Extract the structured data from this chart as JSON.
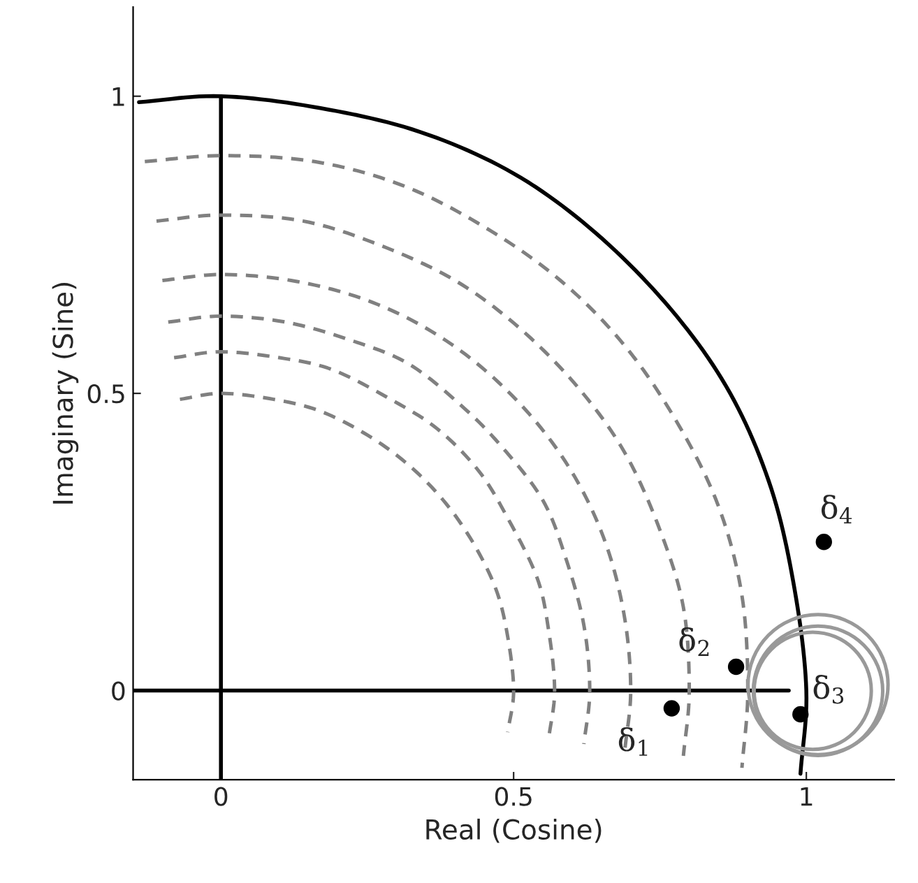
{
  "chart_data": {
    "type": "line",
    "xlabel": "Real (Cosine)",
    "ylabel": "Imaginary (Sine)",
    "xlim": [
      -0.15,
      1.15
    ],
    "ylim": [
      -0.15,
      1.15
    ],
    "xticks": [
      0,
      0.5,
      1
    ],
    "yticks": [
      0,
      0.5,
      1
    ],
    "grid": false,
    "legend": false,
    "series": [
      {
        "color": "#000000",
        "line_style": "solid",
        "x": [
          -0.15,
          0.97
        ],
        "values": [
          0,
          0
        ]
      },
      {
        "color": "#000000",
        "line_style": "solid",
        "x": [
          0,
          0
        ],
        "values": [
          -0.15,
          1
        ]
      },
      {
        "color": "#000000",
        "line_style": "solid",
        "x": [
          -0.14,
          0,
          0.17,
          0.34,
          0.5,
          0.64,
          0.77,
          0.87,
          0.94,
          0.98,
          1,
          0.99
        ],
        "values": [
          0.99,
          1,
          0.98,
          0.94,
          0.87,
          0.77,
          0.64,
          0.5,
          0.34,
          0.17,
          0,
          -0.14
        ]
      },
      {
        "color": "#808080",
        "line_style": "dashed",
        "x": [
          -0.13,
          0,
          0.16,
          0.31,
          0.45,
          0.58,
          0.69,
          0.78,
          0.85,
          0.89,
          0.9,
          0.89
        ],
        "values": [
          0.89,
          0.9,
          0.89,
          0.85,
          0.78,
          0.69,
          0.58,
          0.45,
          0.31,
          0.16,
          0,
          -0.13
        ]
      },
      {
        "color": "#808080",
        "line_style": "dashed",
        "x": [
          -0.11,
          0,
          0.14,
          0.27,
          0.4,
          0.51,
          0.61,
          0.69,
          0.75,
          0.79,
          0.8,
          0.79
        ],
        "values": [
          0.79,
          0.8,
          0.79,
          0.75,
          0.69,
          0.61,
          0.51,
          0.4,
          0.27,
          0.14,
          0,
          -0.11
        ]
      },
      {
        "color": "#808080",
        "line_style": "dashed",
        "x": [
          -0.1,
          0,
          0.12,
          0.24,
          0.35,
          0.45,
          0.54,
          0.61,
          0.66,
          0.69,
          0.7,
          0.69
        ],
        "values": [
          0.69,
          0.7,
          0.69,
          0.66,
          0.61,
          0.54,
          0.45,
          0.35,
          0.24,
          0.12,
          0,
          -0.1
        ]
      },
      {
        "color": "#808080",
        "line_style": "dashed",
        "x": [
          -0.09,
          0,
          0.11,
          0.22,
          0.32,
          0.41,
          0.48,
          0.55,
          0.59,
          0.62,
          0.63,
          0.62
        ],
        "values": [
          0.62,
          0.63,
          0.62,
          0.59,
          0.55,
          0.48,
          0.41,
          0.32,
          0.22,
          0.11,
          0,
          -0.09
        ]
      },
      {
        "color": "#808080",
        "line_style": "dashed",
        "x": [
          -0.08,
          0,
          0.1,
          0.19,
          0.29,
          0.37,
          0.44,
          0.49,
          0.54,
          0.56,
          0.57,
          0.56
        ],
        "values": [
          0.56,
          0.57,
          0.56,
          0.54,
          0.49,
          0.44,
          0.37,
          0.29,
          0.19,
          0.1,
          0,
          -0.08
        ]
      },
      {
        "color": "#808080",
        "line_style": "dashed",
        "x": [
          -0.07,
          0,
          0.09,
          0.17,
          0.25,
          0.32,
          0.38,
          0.43,
          0.47,
          0.49,
          0.5,
          0.49
        ],
        "values": [
          0.49,
          0.5,
          0.49,
          0.47,
          0.43,
          0.38,
          0.32,
          0.25,
          0.17,
          0.09,
          0,
          -0.07
        ]
      },
      {
        "type": "scatter",
        "color": "#000000",
        "marker": "circle",
        "x": [
          0.77,
          0.88,
          0.99,
          1.03
        ],
        "values": [
          -0.03,
          0.04,
          -0.04,
          0.25
        ]
      }
    ],
    "annotations": [
      {
        "text": "δ$_{1}$",
        "x": 0.77,
        "y": -0.03
      },
      {
        "text": "δ$_{2}$",
        "x": 0.88,
        "y": 0.04
      },
      {
        "text": "δ$_{3}$",
        "x": 0.99,
        "y": -0.04
      },
      {
        "text": "δ$_{4}$",
        "x": 1.03,
        "y": 0.25
      }
    ]
  }
}
